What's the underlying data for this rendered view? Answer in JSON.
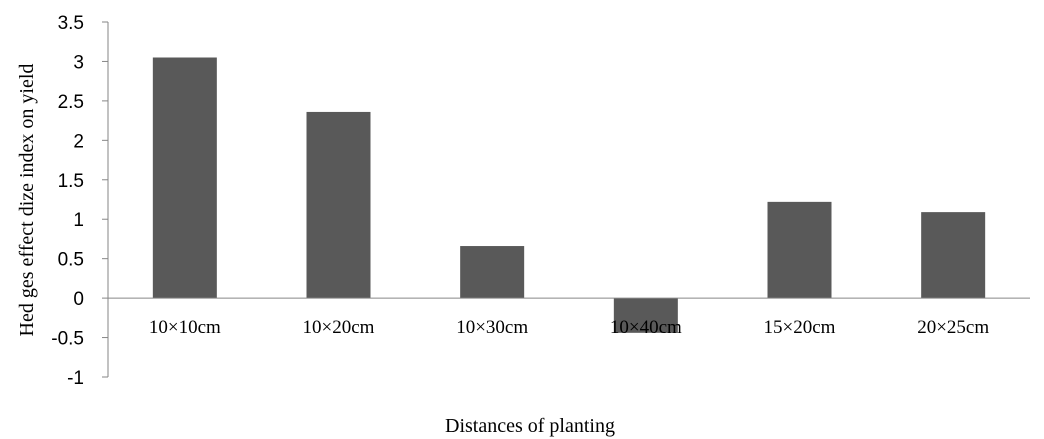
{
  "chart_data": {
    "type": "bar",
    "title": "",
    "xlabel": "Distances of planting",
    "ylabel": "Hed ges effect dize index on yield",
    "categories": [
      "10×10cm",
      "10×20cm",
      "10×30cm",
      "10×40cm",
      "15×20cm",
      "20×25cm"
    ],
    "values": [
      3.05,
      2.36,
      0.66,
      -0.44,
      1.22,
      1.09
    ],
    "ylim": [
      -1,
      3.5
    ],
    "yticks": [
      "3.5",
      "3",
      "2.5",
      "2",
      "1.5",
      "1",
      "0.5",
      "0",
      "-0.5",
      "-1"
    ],
    "grid": false,
    "legend": "none",
    "colors": {
      "bar": "#595959",
      "axis": "#868686",
      "text": "#000000"
    }
  }
}
